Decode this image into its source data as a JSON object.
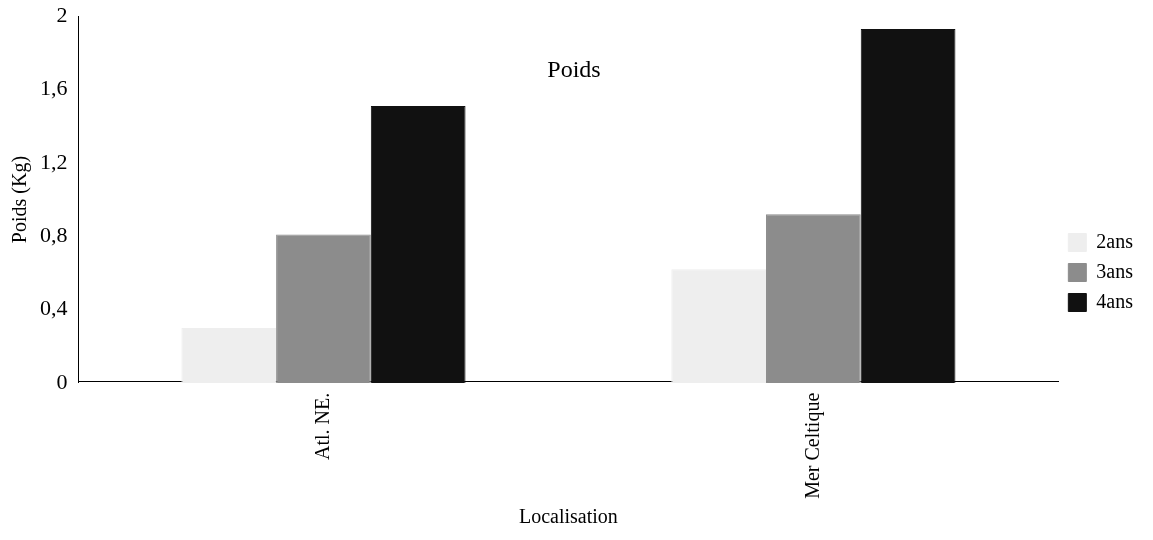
{
  "chart_data": {
    "type": "bar",
    "title": "Poids",
    "xlabel": "Localisation",
    "ylabel": "Poids (Kg)",
    "categories": [
      "Atl. NE.",
      "Mer Celtique"
    ],
    "series": [
      {
        "name": "2ans",
        "color": "#eeeeee",
        "values": [
          0.3,
          0.62
        ]
      },
      {
        "name": "3ans",
        "color": "#8c8c8c",
        "values": [
          0.81,
          0.92
        ]
      },
      {
        "name": "4ans",
        "color": "#111111",
        "values": [
          1.51,
          1.93
        ]
      }
    ],
    "ylim": [
      0,
      2
    ],
    "yticks": [
      0,
      {
        "value": 0.4,
        "label": "0,4"
      },
      {
        "value": 0.8,
        "label": "0,8"
      },
      {
        "value": 1.2,
        "label": "1,2"
      },
      {
        "value": 1.6,
        "label": "1,6"
      },
      2
    ],
    "grid": false,
    "legend": "right"
  }
}
